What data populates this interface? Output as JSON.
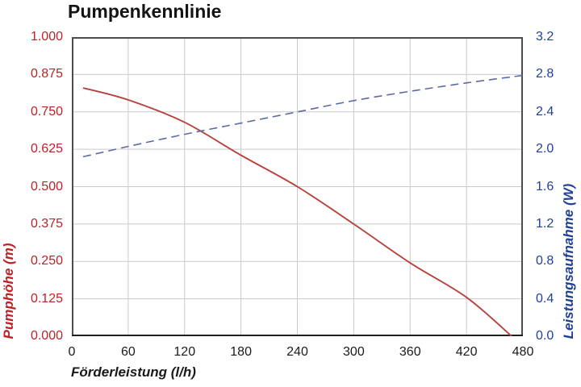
{
  "title": "Pumpenkennlinie",
  "axes": {
    "x": {
      "label": "Förderleistung (l/h)",
      "min": 0,
      "max": 480,
      "ticks": [
        "0",
        "60",
        "120",
        "180",
        "240",
        "300",
        "360",
        "420",
        "480"
      ],
      "color": "#1a1a1a"
    },
    "y_left": {
      "label": "Pumphöhe (m)",
      "min": 0,
      "max": 1,
      "ticks": [
        "1.000",
        "0.875",
        "0.750",
        "0.625",
        "0.500",
        "0.375",
        "0.250",
        "0.125",
        "0.000"
      ],
      "color": "#be2127"
    },
    "y_right": {
      "label": "Leistungsaufnahme (W)",
      "min": 0,
      "max": 3.2,
      "ticks": [
        "3.2",
        "2.8",
        "2.4",
        "2.0",
        "1.6",
        "1.2",
        "0.8",
        "0.4",
        "0.0"
      ],
      "color": "#21409a"
    }
  },
  "chart_data": {
    "type": "line",
    "title": "Pumpenkennlinie",
    "xlabel": "Förderleistung (l/h)",
    "ylabel_left": "Pumphöhe (m)",
    "ylabel_right": "Leistungsaufnahme (W)",
    "xlim": [
      0,
      480
    ],
    "ylim_left": [
      0,
      1.0
    ],
    "ylim_right": [
      0,
      3.2
    ],
    "grid": true,
    "legend": "none",
    "series": [
      {
        "name": "Pumphöhe (m)",
        "axis": "left",
        "color": "#b8423d",
        "line_style": "solid",
        "points": [
          [
            12,
            0.83
          ],
          [
            60,
            0.79
          ],
          [
            120,
            0.715
          ],
          [
            180,
            0.605
          ],
          [
            240,
            0.5
          ],
          [
            300,
            0.375
          ],
          [
            360,
            0.245
          ],
          [
            420,
            0.13
          ],
          [
            468,
            0.0
          ]
        ]
      },
      {
        "name": "Leistungsaufnahme (W)",
        "axis": "right",
        "color": "#5b69a9",
        "line_style": "dashed",
        "points": [
          [
            12,
            1.92
          ],
          [
            60,
            2.03
          ],
          [
            120,
            2.16
          ],
          [
            180,
            2.28
          ],
          [
            240,
            2.4
          ],
          [
            300,
            2.52
          ],
          [
            360,
            2.62
          ],
          [
            420,
            2.71
          ],
          [
            480,
            2.79
          ]
        ]
      }
    ],
    "grid_color": "#cacaca",
    "frame_color": "#4c4c4c"
  }
}
